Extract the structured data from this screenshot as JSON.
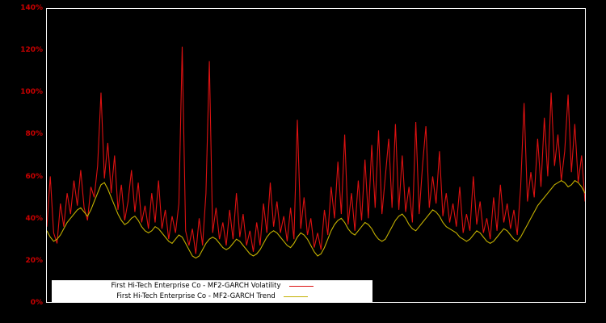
{
  "page": {
    "background": "#000000",
    "plot_border_color": "#ffffff"
  },
  "axis": {
    "tick_label_color": "#cc0000",
    "y_tick_labels": [
      "0%",
      "20%",
      "40%",
      "60%",
      "80%",
      "100%",
      "120%",
      "140%"
    ],
    "y_tick_values": [
      0,
      20,
      40,
      60,
      80,
      100,
      120,
      140
    ]
  },
  "legend": {
    "items": [
      {
        "label": "First Hi-Tech Enterprise Co - MF2-GARCH Volatility",
        "color": "#dd1111"
      },
      {
        "label": "First Hi-Tech Enterprise Co - MF2-GARCH Trend",
        "color": "#c3b000"
      }
    ]
  },
  "chart_data": {
    "type": "line",
    "title": "",
    "xlabel": "",
    "ylabel": "",
    "y_unit": "%",
    "ylim": [
      0,
      140
    ],
    "grid": false,
    "legend_position": "lower center",
    "background": "#000000",
    "series": [
      {
        "name": "First Hi-Tech Enterprise Co - MF2-GARCH Volatility",
        "color": "#dd1111",
        "values": [
          36,
          60,
          33,
          28,
          47,
          36,
          52,
          42,
          58,
          46,
          63,
          45,
          39,
          55,
          50,
          65,
          100,
          59,
          76,
          52,
          70,
          44,
          56,
          39,
          48,
          63,
          43,
          57,
          38,
          46,
          35,
          52,
          38,
          58,
          35,
          44,
          30,
          41,
          33,
          47,
          122,
          34,
          27,
          35,
          23,
          40,
          27,
          52,
          115,
          33,
          45,
          30,
          38,
          27,
          44,
          30,
          52,
          31,
          42,
          27,
          34,
          24,
          38,
          27,
          47,
          33,
          57,
          36,
          48,
          33,
          41,
          29,
          45,
          30,
          87,
          35,
          50,
          32,
          40,
          26,
          33,
          25,
          44,
          32,
          55,
          40,
          67,
          42,
          80,
          37,
          52,
          34,
          58,
          39,
          68,
          40,
          75,
          45,
          82,
          42,
          60,
          78,
          45,
          85,
          44,
          70,
          43,
          55,
          38,
          86,
          42,
          65,
          84,
          45,
          60,
          47,
          72,
          41,
          52,
          38,
          47,
          36,
          55,
          33,
          42,
          34,
          60,
          37,
          48,
          33,
          40,
          30,
          50,
          34,
          56,
          38,
          47,
          35,
          44,
          32,
          55,
          95,
          48,
          62,
          50,
          78,
          55,
          88,
          60,
          100,
          65,
          80,
          58,
          72,
          99,
          62,
          85,
          57,
          70,
          48
        ]
      },
      {
        "name": "First Hi-Tech Enterprise Co - MF2-GARCH Trend",
        "color": "#c3b000",
        "values": [
          34,
          31,
          29,
          30,
          32,
          35,
          38,
          40,
          42,
          44,
          45,
          43,
          41,
          44,
          48,
          52,
          56,
          57,
          54,
          50,
          46,
          42,
          39,
          37,
          38,
          40,
          41,
          39,
          36,
          34,
          33,
          34,
          36,
          35,
          33,
          31,
          29,
          28,
          30,
          32,
          31,
          28,
          25,
          22,
          21,
          22,
          25,
          28,
          30,
          31,
          30,
          28,
          26,
          25,
          26,
          28,
          30,
          29,
          27,
          25,
          23,
          22,
          23,
          25,
          28,
          31,
          33,
          34,
          33,
          31,
          29,
          27,
          26,
          28,
          31,
          33,
          32,
          30,
          27,
          24,
          22,
          23,
          26,
          30,
          34,
          37,
          39,
          40,
          38,
          35,
          33,
          32,
          34,
          36,
          38,
          37,
          35,
          32,
          30,
          29,
          30,
          33,
          36,
          39,
          41,
          42,
          40,
          37,
          35,
          34,
          36,
          38,
          40,
          42,
          44,
          43,
          41,
          38,
          36,
          35,
          34,
          33,
          31,
          30,
          29,
          30,
          32,
          34,
          33,
          31,
          29,
          28,
          29,
          31,
          33,
          35,
          34,
          32,
          30,
          29,
          31,
          34,
          37,
          40,
          43,
          46,
          48,
          50,
          52,
          54,
          56,
          57,
          58,
          57,
          55,
          56,
          58,
          57,
          55,
          52
        ]
      }
    ]
  }
}
